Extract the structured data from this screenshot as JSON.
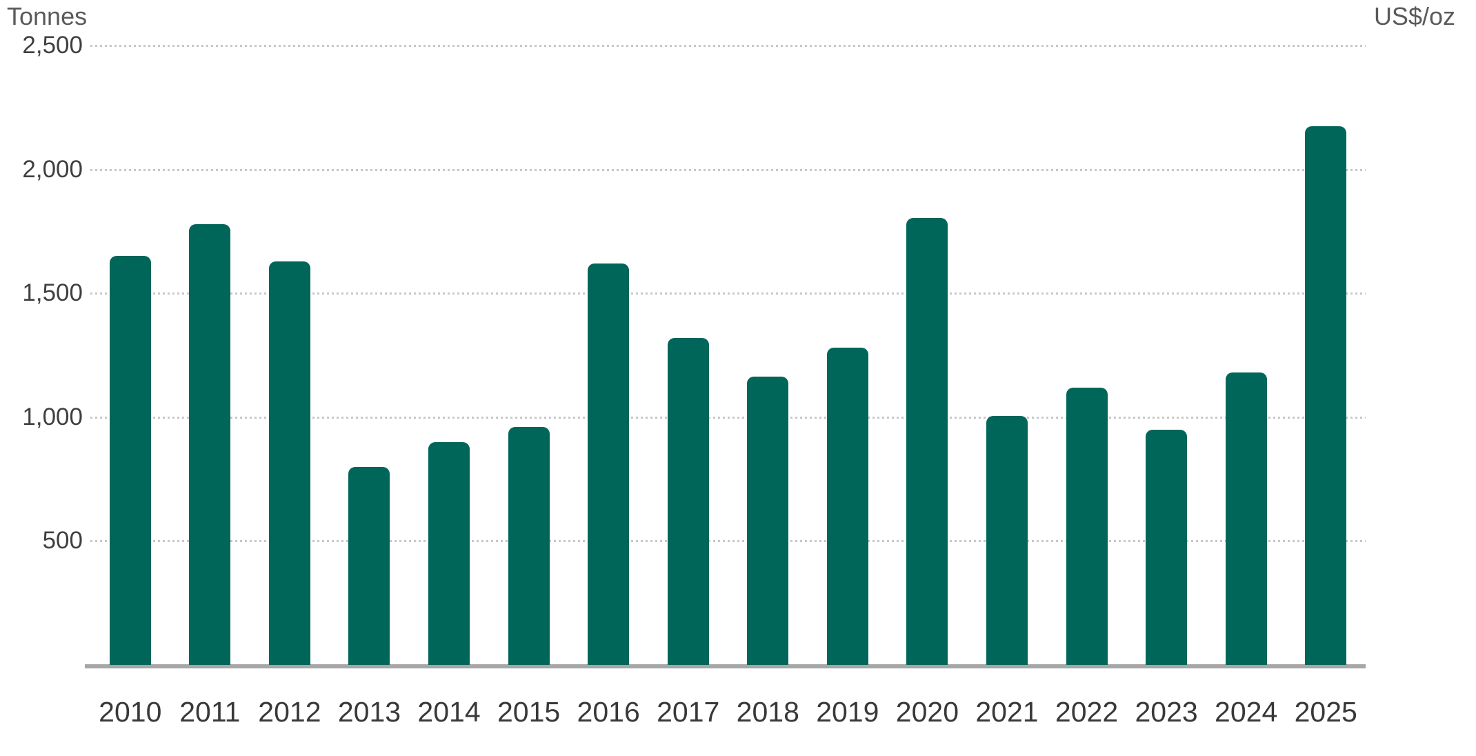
{
  "chart_data": {
    "type": "bar",
    "categories": [
      "2010",
      "2011",
      "2012",
      "2013",
      "2014",
      "2015",
      "2016",
      "2017",
      "2018",
      "2019",
      "2020",
      "2021",
      "2022",
      "2023",
      "2024",
      "2025"
    ],
    "values": [
      1650,
      1780,
      1630,
      800,
      900,
      960,
      1620,
      1320,
      1165,
      1280,
      1805,
      1005,
      1120,
      950,
      1180,
      2175
    ],
    "series_unit": "Tonnes",
    "ylabel_left": "Tonnes",
    "ylabel_right": "US$/oz",
    "ylim": [
      0,
      2500
    ],
    "yticks": [
      {
        "value": 500,
        "label": "500"
      },
      {
        "value": 1000,
        "label": "1,000"
      },
      {
        "value": 1500,
        "label": "1,500"
      },
      {
        "value": 2000,
        "label": "2,000"
      },
      {
        "value": 2500,
        "label": "2,500"
      }
    ],
    "right_axis_tick_labels": [],
    "grid": "horizontal-dotted",
    "legend": "none",
    "colors": {
      "bar": "#00665A",
      "axis_line": "#A6A6A6",
      "gridline": "#C7C7C7",
      "tick_text": "#404042",
      "category_text": "#38383A",
      "unit_text": "#595A5C"
    }
  }
}
